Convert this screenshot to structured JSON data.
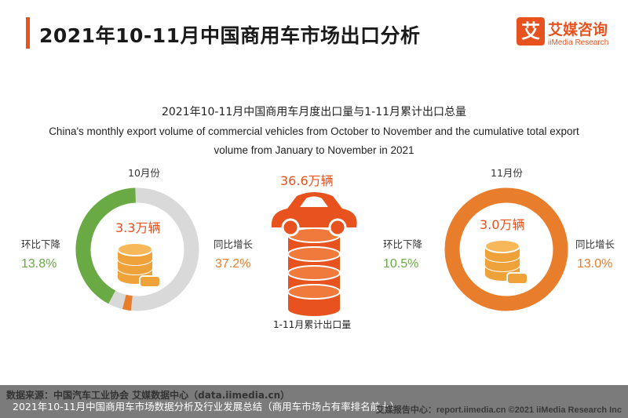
{
  "header": {
    "title": "2021年10-11月中国商用车市场出口分析"
  },
  "logo": {
    "badge": "艾",
    "name_cn": "艾媒咨询",
    "name_en": "iiMedia Research"
  },
  "colors": {
    "accent": "#e8521e",
    "green": "#6aaa44",
    "orange": "#e87d2b",
    "ring_gray": "#d9d9d9",
    "coin": "#f0a23a"
  },
  "chart_data": {
    "type": "pie",
    "title_cn": "2021年10-11月中国商用车月度出口量与1-11月累计出口总量",
    "title_en": "China's monthly export volume of commercial vehicles from October to November and the cumulative total export volume from January to November in 2021",
    "months": [
      {
        "month": "10月份",
        "volume_label": "3.3万辆",
        "volume": 3.3,
        "mom_label": "环比下降",
        "mom_value": "13.8%",
        "yoy_label": "同比增长",
        "yoy_value": "37.2%"
      },
      {
        "month": "11月份",
        "volume_label": "3.0万辆",
        "volume": 3.0,
        "mom_label": "环比下降",
        "mom_value": "10.5%",
        "yoy_label": "同比增长",
        "yoy_value": "13.0%"
      }
    ],
    "cumulative": {
      "label": "1-11月累计出口量",
      "value_label": "36.6万辆",
      "value": 36.6
    }
  },
  "footer": {
    "source": "数据来源：中国汽车工业协会  艾媒数据中心（data.iimedia.cn）",
    "caption": "2021年10-11月中国商用车市场数据分析及行业发展总结（商用车市场占有率排名前十）",
    "right": "艾媒报告中心：report.iimedia.cn  ©2021  iiMedia Research  Inc"
  }
}
